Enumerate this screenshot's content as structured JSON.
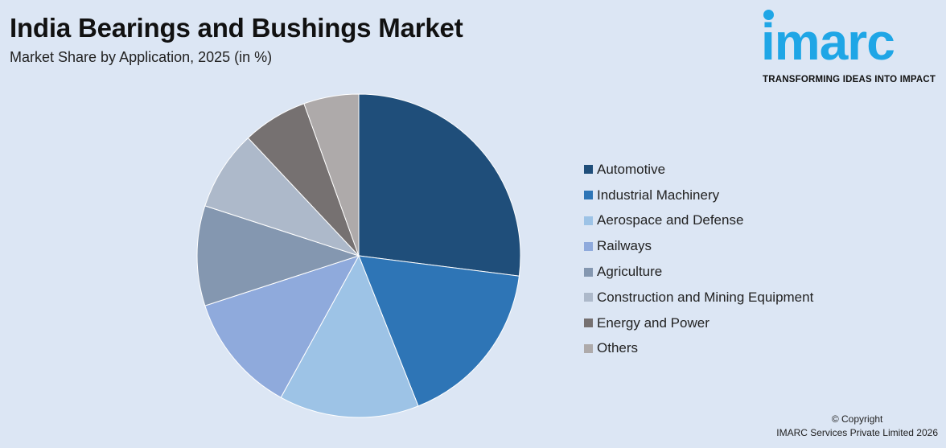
{
  "header": {
    "title": "India Bearings and Bushings Market",
    "subtitle": "Market Share by Application, 2025 (in %)"
  },
  "logo": {
    "text": "imarc",
    "tagline": "TRANSFORMING IDEAS INTO IMPACT",
    "color": "#1fa6e6"
  },
  "chart_data": {
    "type": "pie",
    "categories": [
      "Automotive",
      "Industrial Machinery",
      "Aerospace and Defense",
      "Railways",
      "Agriculture",
      "Construction and Mining Equipment",
      "Energy and Power",
      "Others"
    ],
    "values": [
      27,
      17,
      14,
      12,
      10,
      8,
      6.5,
      5.5
    ],
    "colors": [
      "#1f4e7a",
      "#2e75b6",
      "#9dc3e6",
      "#8faadc",
      "#8497b0",
      "#adb9ca",
      "#767171",
      "#aeaaaa"
    ],
    "legend": "right",
    "start_angle": "12 o'clock",
    "direction": "clockwise"
  },
  "footer": {
    "copyright_line1": "© Copyright",
    "copyright_line2": "IMARC Services Private Limited 2026"
  }
}
